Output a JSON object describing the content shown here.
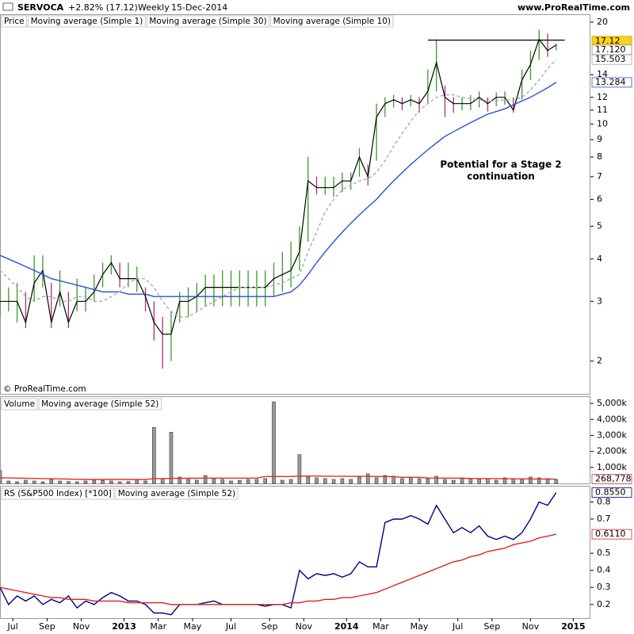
{
  "header": {
    "symbol": "SERVOCA",
    "change": "+2.82% (17.12)",
    "period": "Weekly",
    "date": "15-Dec-2014",
    "site": "www.ProRealTime.com"
  },
  "watermark": "© ProRealTime.com",
  "chart_data": [
    {
      "type": "ohlc",
      "legend": "Price",
      "log_scale": true,
      "x": [
        0,
        2,
        4,
        6,
        8,
        10,
        12,
        14,
        16,
        18,
        20,
        22,
        24,
        26,
        28,
        30,
        32,
        34,
        36,
        38,
        40,
        42,
        44,
        46,
        48,
        50,
        52,
        54,
        56,
        58,
        60,
        62,
        64,
        66,
        68,
        70,
        72,
        74,
        76,
        78,
        80,
        82,
        84,
        86,
        88,
        90,
        92,
        94,
        96,
        98,
        100,
        102,
        104,
        106,
        108,
        110,
        112,
        114,
        116,
        118,
        120,
        122,
        124,
        126,
        128,
        130
      ],
      "xlim": [
        0,
        138
      ],
      "ylim": [
        1.6,
        21.1
      ],
      "yticks": [
        20,
        14,
        12,
        11,
        10,
        9,
        8,
        7,
        6,
        5,
        4,
        3,
        2
      ],
      "high": [
        3.6,
        3.3,
        3.4,
        3.2,
        4.1,
        4.1,
        3.4,
        3.7,
        3.2,
        3.5,
        3.3,
        3.6,
        3.9,
        4.1,
        3.9,
        3.9,
        3.8,
        3.3,
        3.0,
        2.7,
        2.8,
        3.2,
        3.3,
        3.4,
        3.6,
        3.6,
        3.7,
        3.7,
        3.7,
        3.7,
        3.7,
        3.7,
        3.9,
        4.2,
        4.5,
        5.0,
        8.0,
        7.0,
        7.0,
        7.0,
        7.2,
        7.2,
        8.5,
        7.6,
        11.5,
        12.0,
        12.2,
        12.0,
        12.2,
        12.0,
        14.5,
        17.8,
        13.0,
        12.0,
        12.0,
        12.2,
        12.5,
        12.0,
        12.4,
        12.5,
        12.0,
        14.5,
        16.5,
        19.0,
        18.5,
        17.3
      ],
      "low": [
        2.7,
        2.8,
        2.6,
        2.5,
        3.0,
        3.3,
        2.5,
        2.9,
        2.5,
        2.8,
        2.8,
        3.0,
        3.3,
        3.6,
        3.3,
        3.3,
        3.2,
        2.8,
        2.3,
        1.9,
        2.0,
        2.6,
        2.7,
        2.8,
        2.9,
        2.9,
        2.9,
        2.9,
        2.9,
        2.9,
        2.9,
        2.9,
        3.1,
        3.2,
        3.3,
        3.7,
        4.5,
        6.2,
        6.2,
        6.1,
        6.3,
        6.4,
        7.0,
        6.6,
        7.8,
        10.5,
        11.2,
        11.0,
        11.3,
        10.8,
        11.5,
        12.5,
        10.5,
        10.8,
        11.0,
        11.0,
        11.2,
        10.9,
        11.3,
        11.4,
        10.8,
        11.8,
        13.5,
        15.5,
        15.8,
        16.5
      ],
      "up_color": "#3a9a2a",
      "down_color": "#b03070",
      "price_label": "17.12",
      "series": [
        {
          "name": "Moving average (Simple 1)",
          "color": "#000000",
          "last_label": "17.120",
          "values": [
            3.0,
            3.0,
            3.0,
            2.6,
            3.4,
            3.7,
            2.6,
            3.2,
            2.6,
            3.0,
            3.0,
            3.2,
            3.6,
            3.9,
            3.5,
            3.5,
            3.5,
            3.1,
            2.6,
            2.4,
            2.4,
            3.0,
            3.0,
            3.1,
            3.3,
            3.3,
            3.3,
            3.3,
            3.3,
            3.3,
            3.3,
            3.3,
            3.5,
            3.6,
            3.7,
            4.2,
            6.8,
            6.5,
            6.5,
            6.5,
            6.8,
            6.8,
            8.0,
            7.0,
            10.5,
            11.5,
            11.8,
            11.5,
            11.8,
            11.5,
            12.5,
            15.2,
            12.0,
            11.5,
            11.5,
            11.5,
            12.0,
            11.5,
            12.0,
            12.0,
            11.0,
            13.5,
            15.0,
            17.8,
            16.5,
            17.12
          ]
        },
        {
          "name": "Moving average (Simple 30)",
          "color": "#2850d8",
          "last_label": "13.284",
          "values": [
            4.1,
            4.0,
            3.9,
            3.8,
            3.7,
            3.6,
            3.5,
            3.45,
            3.4,
            3.35,
            3.3,
            3.25,
            3.2,
            3.2,
            3.2,
            3.15,
            3.15,
            3.15,
            3.1,
            3.1,
            3.1,
            3.1,
            3.1,
            3.1,
            3.1,
            3.1,
            3.1,
            3.1,
            3.1,
            3.1,
            3.1,
            3.1,
            3.1,
            3.15,
            3.2,
            3.35,
            3.6,
            3.9,
            4.2,
            4.5,
            4.8,
            5.1,
            5.4,
            5.7,
            6.0,
            6.4,
            6.8,
            7.2,
            7.6,
            8.0,
            8.4,
            8.8,
            9.2,
            9.5,
            9.8,
            10.1,
            10.4,
            10.7,
            10.9,
            11.1,
            11.4,
            11.7,
            12.0,
            12.4,
            12.8,
            13.284
          ]
        },
        {
          "name": "Moving average (Simple 10)",
          "color": "#aaaaaa",
          "dashed": true,
          "last_label": "15.503",
          "values": [
            3.7,
            3.5,
            3.3,
            3.1,
            3.0,
            3.1,
            3.1,
            3.0,
            3.0,
            3.1,
            3.1,
            3.0,
            3.0,
            3.1,
            3.2,
            3.4,
            3.5,
            3.5,
            3.3,
            3.0,
            2.8,
            2.7,
            2.7,
            2.8,
            2.9,
            3.0,
            3.1,
            3.2,
            3.3,
            3.3,
            3.3,
            3.3,
            3.35,
            3.4,
            3.5,
            3.6,
            4.2,
            4.8,
            5.5,
            6.0,
            6.4,
            6.6,
            6.8,
            6.9,
            7.2,
            7.8,
            8.6,
            9.4,
            10.2,
            11.0,
            11.5,
            12.0,
            12.2,
            12.2,
            12.0,
            11.9,
            11.8,
            11.7,
            11.7,
            11.8,
            11.8,
            12.0,
            12.6,
            13.5,
            14.6,
            15.503
          ]
        }
      ],
      "resistance": {
        "value": 17.7,
        "x": [
          100,
          132
        ]
      },
      "annotation": [
        "Potential for a Stage 2",
        "continuation"
      ]
    },
    {
      "type": "bar",
      "legend": "Volume",
      "x": [
        0,
        2,
        4,
        6,
        8,
        10,
        12,
        14,
        16,
        18,
        20,
        22,
        24,
        26,
        28,
        30,
        32,
        34,
        36,
        38,
        40,
        42,
        44,
        46,
        48,
        50,
        52,
        54,
        56,
        58,
        60,
        62,
        64,
        66,
        68,
        70,
        72,
        74,
        76,
        78,
        80,
        82,
        84,
        86,
        88,
        90,
        92,
        94,
        96,
        98,
        100,
        102,
        104,
        106,
        108,
        110,
        112,
        114,
        116,
        118,
        120,
        122,
        124,
        126,
        128,
        130
      ],
      "xlim": [
        0,
        138
      ],
      "ylim": [
        0,
        5400
      ],
      "yticks": [
        {
          "value": 5000,
          "label": "5,000k"
        },
        {
          "value": 4000,
          "label": "4,000k"
        },
        {
          "value": 3000,
          "label": "3,000k"
        },
        {
          "value": 2000,
          "label": "2,000k"
        },
        {
          "value": 1000,
          "label": "1,000k"
        }
      ],
      "color": "#9a9a9a",
      "values": [
        800,
        150,
        100,
        200,
        150,
        100,
        250,
        150,
        120,
        100,
        150,
        200,
        180,
        150,
        100,
        120,
        250,
        150,
        3500,
        300,
        3200,
        400,
        250,
        200,
        500,
        300,
        250,
        150,
        200,
        250,
        250,
        300,
        5100,
        200,
        250,
        1800,
        400,
        350,
        300,
        250,
        300,
        250,
        400,
        600,
        350,
        500,
        450,
        300,
        350,
        300,
        300,
        450,
        250,
        200,
        350,
        300,
        250,
        300,
        200,
        350,
        300,
        250,
        400,
        350,
        300,
        250
      ],
      "series": [
        {
          "name": "Moving average (Simple 52)",
          "color": "#e03030",
          "last_label": "268,778",
          "values": [
            350,
            340,
            330,
            320,
            310,
            300,
            290,
            280,
            270,
            260,
            250,
            250,
            250,
            250,
            250,
            250,
            250,
            250,
            300,
            300,
            310,
            320,
            320,
            320,
            330,
            330,
            330,
            330,
            330,
            330,
            330,
            430,
            430,
            430,
            430,
            460,
            460,
            460,
            450,
            450,
            450,
            440,
            440,
            440,
            430,
            430,
            420,
            380,
            380,
            380,
            340,
            330,
            330,
            330,
            320,
            310,
            300,
            300,
            300,
            290,
            290,
            280,
            280,
            275,
            270,
            268.778
          ]
        }
      ]
    },
    {
      "type": "line",
      "x": [
        0,
        2,
        4,
        6,
        8,
        10,
        12,
        14,
        16,
        18,
        20,
        22,
        24,
        26,
        28,
        30,
        32,
        34,
        36,
        38,
        40,
        42,
        44,
        46,
        48,
        50,
        52,
        54,
        56,
        58,
        60,
        62,
        64,
        66,
        68,
        70,
        72,
        74,
        76,
        78,
        80,
        82,
        84,
        86,
        88,
        90,
        92,
        94,
        96,
        98,
        100,
        102,
        104,
        106,
        108,
        110,
        112,
        114,
        116,
        118,
        120,
        122,
        124,
        126,
        128,
        130
      ],
      "xlim": [
        0,
        138
      ],
      "ylim": [
        0.12,
        0.89
      ],
      "yticks": [
        0.8,
        0.7,
        0.5,
        0.4,
        0.3,
        0.2
      ],
      "xticks": [
        {
          "value": 3,
          "label": "Jul"
        },
        {
          "value": 11,
          "label": "Sep"
        },
        {
          "value": 19,
          "label": "Nov"
        },
        {
          "value": 29,
          "label": "2013"
        },
        {
          "value": 37,
          "label": "Mar"
        },
        {
          "value": 45,
          "label": "May"
        },
        {
          "value": 54,
          "label": "Jul"
        },
        {
          "value": 63,
          "label": "Sep"
        },
        {
          "value": 71,
          "label": "Nov"
        },
        {
          "value": 81,
          "label": "2014"
        },
        {
          "value": 89,
          "label": "Mar"
        },
        {
          "value": 98,
          "label": "May"
        },
        {
          "value": 107,
          "label": "Jul"
        },
        {
          "value": 115,
          "label": "Sep"
        },
        {
          "value": 124,
          "label": "Nov"
        },
        {
          "value": 134,
          "label": "2015"
        }
      ],
      "series": [
        {
          "name": "RS (S&P500 Index) [*100]",
          "color": "#000080",
          "last_label": "0.8550",
          "values": [
            0.3,
            0.2,
            0.25,
            0.22,
            0.25,
            0.2,
            0.23,
            0.21,
            0.25,
            0.18,
            0.22,
            0.2,
            0.24,
            0.27,
            0.25,
            0.22,
            0.22,
            0.2,
            0.15,
            0.15,
            0.14,
            0.2,
            0.2,
            0.2,
            0.21,
            0.22,
            0.2,
            0.2,
            0.2,
            0.2,
            0.2,
            0.19,
            0.2,
            0.2,
            0.18,
            0.4,
            0.35,
            0.38,
            0.37,
            0.38,
            0.36,
            0.38,
            0.45,
            0.42,
            0.42,
            0.68,
            0.7,
            0.7,
            0.72,
            0.7,
            0.67,
            0.78,
            0.7,
            0.62,
            0.65,
            0.62,
            0.66,
            0.6,
            0.58,
            0.6,
            0.58,
            0.62,
            0.7,
            0.8,
            0.78,
            0.855
          ]
        },
        {
          "name": "Moving average (Simple 52)",
          "color": "#e02020",
          "last_label": "0.6110",
          "values": [
            0.3,
            0.29,
            0.28,
            0.27,
            0.26,
            0.25,
            0.24,
            0.24,
            0.23,
            0.23,
            0.23,
            0.22,
            0.22,
            0.22,
            0.22,
            0.21,
            0.21,
            0.21,
            0.21,
            0.21,
            0.2,
            0.2,
            0.2,
            0.2,
            0.2,
            0.2,
            0.2,
            0.2,
            0.2,
            0.2,
            0.2,
            0.2,
            0.2,
            0.2,
            0.21,
            0.21,
            0.22,
            0.22,
            0.23,
            0.23,
            0.24,
            0.24,
            0.25,
            0.26,
            0.27,
            0.29,
            0.31,
            0.33,
            0.35,
            0.37,
            0.39,
            0.41,
            0.43,
            0.45,
            0.46,
            0.48,
            0.49,
            0.51,
            0.52,
            0.53,
            0.55,
            0.56,
            0.57,
            0.59,
            0.6,
            0.611
          ]
        }
      ]
    }
  ]
}
